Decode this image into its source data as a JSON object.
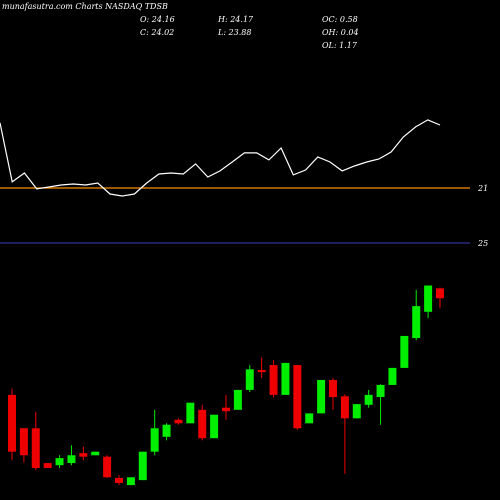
{
  "chart_data": [
    {
      "type": "line",
      "title": "munafasutra.com Charts NASDAQ TDSB",
      "values": [
        16.27,
        20.56,
        19.91,
        21.07,
        20.93,
        20.78,
        20.71,
        20.78,
        20.64,
        21.44,
        21.58,
        21.44,
        20.64,
        19.98,
        19.91,
        19.98,
        19.25,
        20.2,
        19.76,
        19.11,
        18.45,
        18.45,
        18.96,
        18.09,
        20.05,
        19.69,
        18.75,
        19.11,
        19.76,
        19.4,
        19.11,
        18.89,
        18.38,
        17.29,
        16.56,
        16.05,
        16.42
      ],
      "color": "#ffffff",
      "ylim": [
        7.33,
        43.69
      ],
      "yticks": [
        21,
        25
      ],
      "tick_colors": [
        "#ff8c00",
        "#333399"
      ]
    },
    {
      "type": "candlestick",
      "stats": [
        "O: 24.16",
        "H: 24.17",
        "OC: 0.58",
        "C: 24.02",
        "L: 23.88",
        "OH: 0.04",
        "OL: 1.17"
      ],
      "open": [
        22.66,
        22.19,
        22.19,
        21.7,
        21.67,
        21.7,
        21.84,
        21.81,
        21.79,
        21.49,
        21.39,
        21.46,
        21.86,
        22.07,
        22.31,
        22.26,
        22.45,
        22.05,
        22.48,
        22.45,
        22.73,
        23.01,
        23.08,
        22.66,
        23.08,
        22.26,
        22.4,
        22.87,
        22.64,
        22.33,
        22.52,
        22.63,
        22.8,
        23.04,
        23.46,
        23.83,
        24.16
      ],
      "high": [
        22.75,
        22.19,
        22.42,
        21.7,
        21.81,
        21.95,
        21.93,
        21.86,
        21.81,
        21.53,
        21.5,
        21.86,
        22.45,
        22.26,
        22.33,
        22.55,
        22.52,
        22.38,
        22.66,
        22.73,
        23.08,
        23.19,
        23.15,
        23.11,
        23.08,
        22.4,
        22.87,
        22.9,
        22.67,
        22.53,
        22.73,
        22.81,
        23.04,
        23.49,
        24.14,
        24.2,
        24.17
      ],
      "low": [
        21.74,
        21.71,
        21.6,
        21.63,
        21.63,
        21.67,
        21.74,
        21.81,
        21.49,
        21.39,
        21.39,
        21.46,
        21.81,
        22.02,
        22.24,
        22.26,
        22.02,
        22.05,
        22.31,
        22.45,
        22.7,
        22.9,
        22.62,
        22.66,
        22.17,
        22.26,
        22.4,
        22.45,
        21.55,
        22.33,
        22.48,
        22.24,
        22.8,
        23.04,
        23.43,
        23.74,
        23.88
      ],
      "close": [
        21.86,
        21.81,
        21.63,
        21.63,
        21.77,
        21.81,
        21.79,
        21.86,
        21.5,
        21.42,
        21.5,
        21.86,
        22.19,
        22.24,
        22.26,
        22.55,
        22.05,
        22.38,
        22.43,
        22.73,
        23.02,
        22.98,
        22.66,
        23.11,
        22.19,
        22.4,
        22.87,
        22.63,
        22.33,
        22.53,
        22.66,
        22.8,
        23.04,
        23.49,
        23.91,
        24.2,
        24.02
      ],
      "up_color": "#00ee00",
      "down_color": "#ee0000",
      "ylim": [
        21.18,
        28.22
      ]
    }
  ]
}
